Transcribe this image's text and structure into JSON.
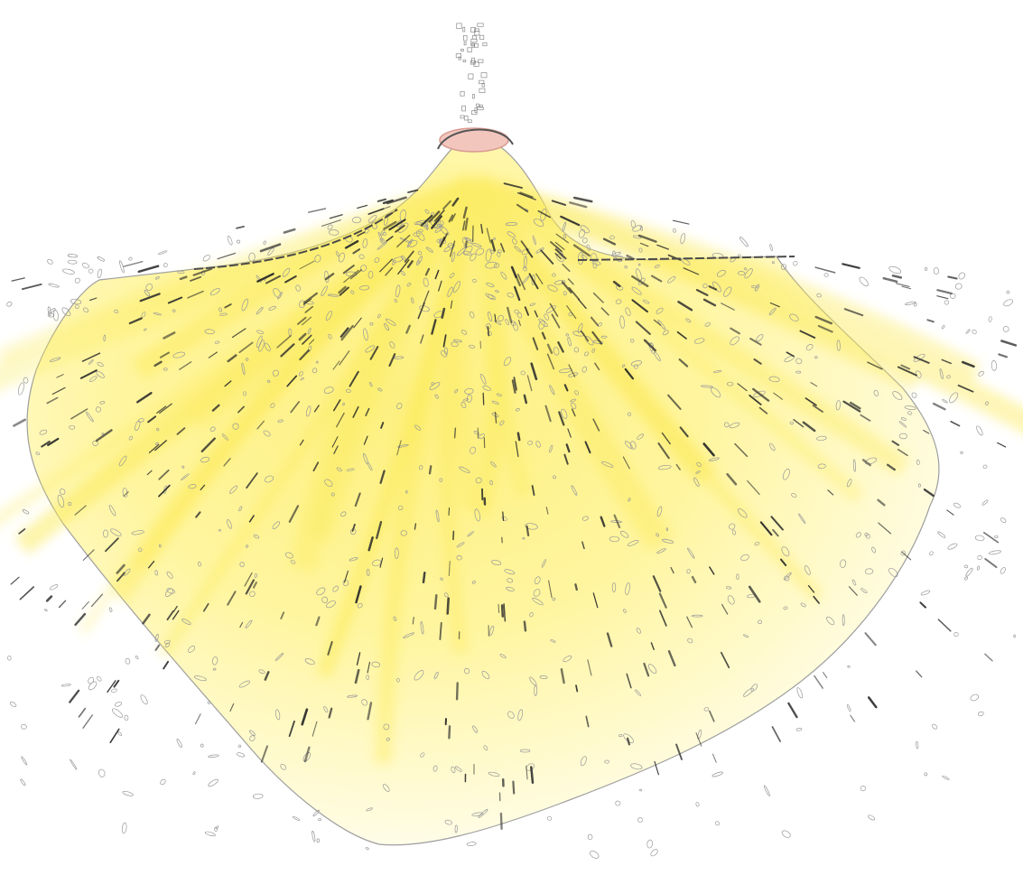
{
  "image": {
    "subject": "yellow-fan-shaped-mass-with-pink-cap",
    "colors": {
      "background": "#ffffff",
      "fill_light": "#fffbd0",
      "fill_mid": "#fff59a",
      "fill_strong": "#fdf070",
      "outline": "#8a8a8a",
      "dash": "#2b2b2b",
      "cap": "#f2c6bd",
      "cap_edge": "#d89a90"
    }
  }
}
